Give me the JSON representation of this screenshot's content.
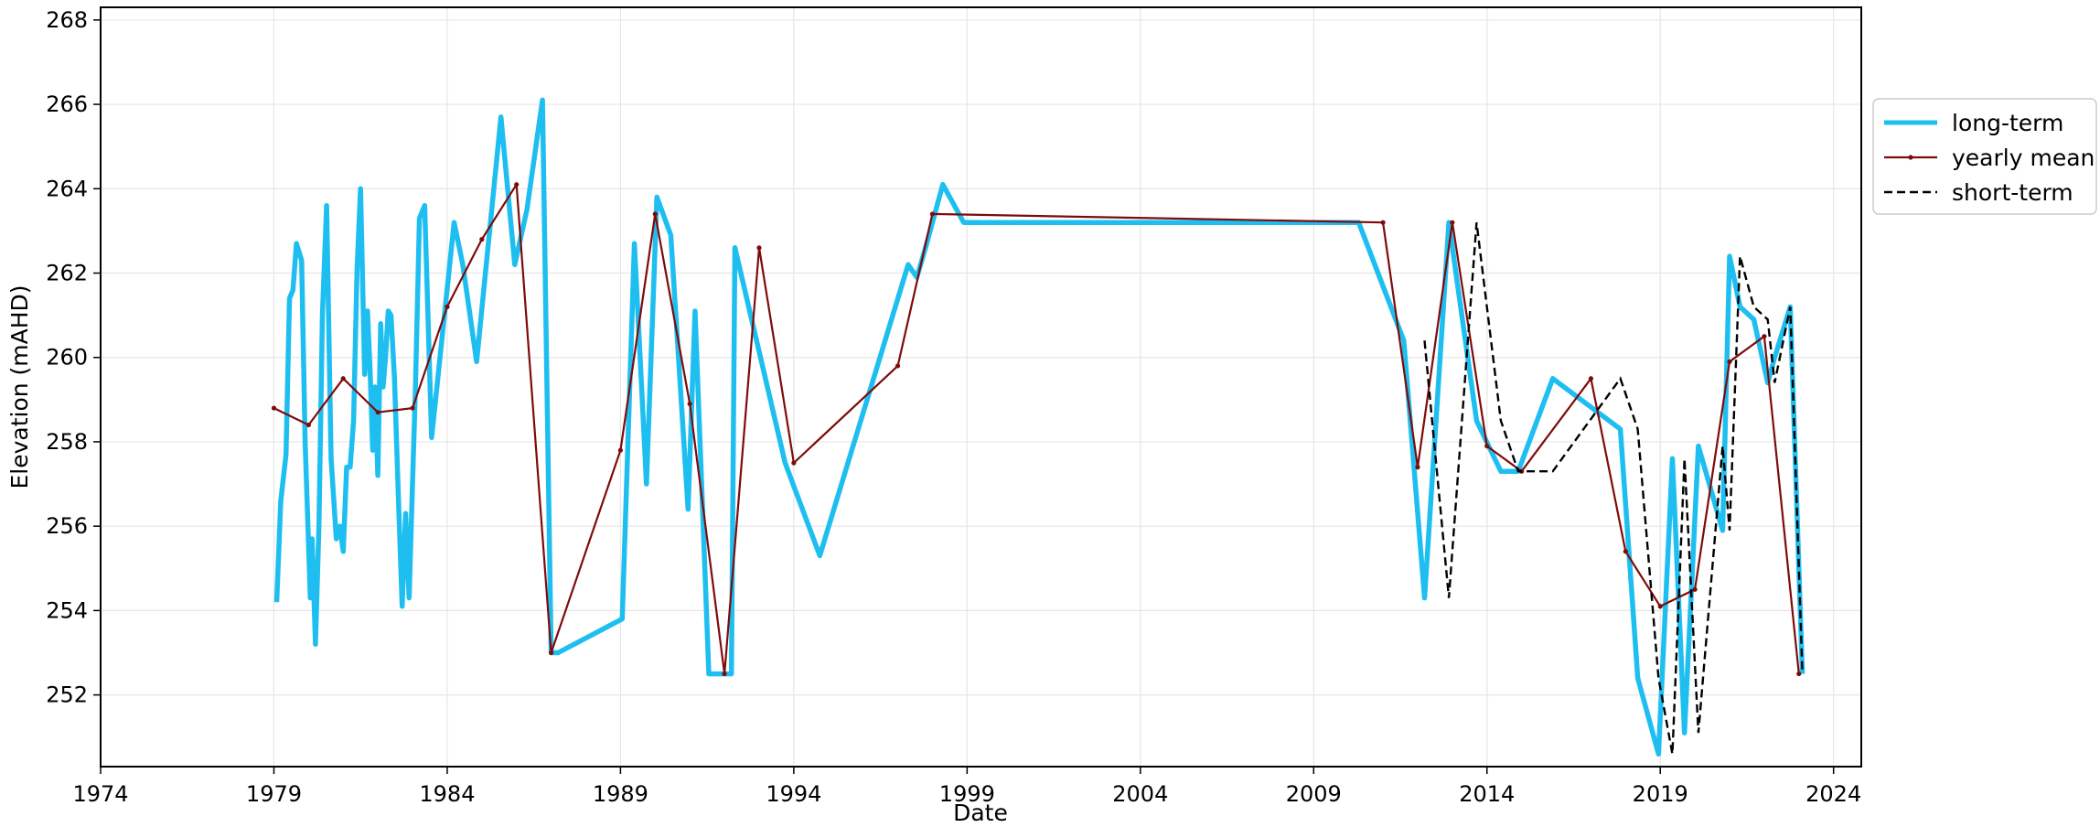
{
  "chart_data": {
    "type": "line",
    "title": "",
    "xlabel": "Date",
    "ylabel": "Elevation (mAHD)",
    "x_ticks": [
      "1974",
      "1979",
      "1984",
      "1989",
      "1994",
      "1999",
      "2004",
      "2009",
      "2014",
      "2019",
      "2024"
    ],
    "y_ticks": [
      "252",
      "254",
      "256",
      "258",
      "260",
      "262",
      "264",
      "266",
      "268"
    ],
    "xlim": [
      1974.0,
      2024.8
    ],
    "ylim": [
      250.3,
      268.3
    ],
    "grid": true,
    "legend_position": "outside-right",
    "series": [
      {
        "name": "long-term",
        "color": "#1ebff0",
        "style": "solid-thick",
        "x": [
          1979.08,
          1979.2,
          1979.35,
          1979.45,
          1979.55,
          1979.65,
          1979.8,
          1979.9,
          1980.05,
          1980.1,
          1980.2,
          1980.3,
          1980.4,
          1980.52,
          1980.65,
          1980.8,
          1980.9,
          1981.0,
          1981.1,
          1981.2,
          1981.3,
          1981.4,
          1981.5,
          1981.62,
          1981.7,
          1981.78,
          1981.85,
          1981.92,
          1982.0,
          1982.08,
          1982.15,
          1982.22,
          1982.3,
          1982.38,
          1982.48,
          1982.58,
          1982.7,
          1982.8,
          1982.9,
          1983.0,
          1983.08,
          1983.2,
          1983.35,
          1983.55,
          1984.2,
          1984.45,
          1984.85,
          1985.55,
          1985.95,
          1986.3,
          1986.75,
          1987.0,
          1987.2,
          1989.05,
          1989.4,
          1989.75,
          1990.05,
          1990.45,
          1990.95,
          1991.15,
          1991.55,
          1992.2,
          1992.3,
          1993.75,
          1994.75,
          1997.3,
          1997.55,
          1997.8,
          1998.3,
          1998.9,
          2010.3,
          2011.6,
          2012.2,
          2012.9,
          2013.7,
          2014.4,
          2014.9,
          2015.9,
          2017.85,
          2018.35,
          2018.95,
          2019.35,
          2019.7,
          2020.1,
          2020.8,
          2021.0,
          2021.3,
          2021.7,
          2022.1,
          2022.3,
          2022.75,
          2023.1
        ],
        "y": [
          254.2,
          256.6,
          257.7,
          261.4,
          261.6,
          262.7,
          262.3,
          258.0,
          254.3,
          255.7,
          253.2,
          256.0,
          261.0,
          263.6,
          257.6,
          255.7,
          256.0,
          255.4,
          257.4,
          257.4,
          258.5,
          262.1,
          264.0,
          259.6,
          261.1,
          259.6,
          257.8,
          259.3,
          257.2,
          260.8,
          259.3,
          260.0,
          261.1,
          261.0,
          259.5,
          257.0,
          254.1,
          256.3,
          254.3,
          257.0,
          259.2,
          263.3,
          263.6,
          258.1,
          263.2,
          262.2,
          259.9,
          265.7,
          262.2,
          263.5,
          266.1,
          253.0,
          253.0,
          253.8,
          262.7,
          257.0,
          263.8,
          262.9,
          256.4,
          261.1,
          252.5,
          252.5,
          262.6,
          257.5,
          255.3,
          262.2,
          261.9,
          262.6,
          264.1,
          263.2,
          263.2,
          260.4,
          254.3,
          263.2,
          258.5,
          257.3,
          257.3,
          259.5,
          258.3,
          252.4,
          250.6,
          257.6,
          251.1,
          257.9,
          255.9,
          262.4,
          261.2,
          260.9,
          259.4,
          260.0,
          261.2,
          252.5
        ]
      },
      {
        "name": "yearly mean",
        "color": "#7e0b0b",
        "style": "solid-thin-markers",
        "x": [
          1979.0,
          1980.0,
          1981.0,
          1982.0,
          1983.0,
          1984.0,
          1985.0,
          1986.0,
          1987.0,
          1989.0,
          1990.0,
          1991.0,
          1992.0,
          1993.0,
          1994.0,
          1997.0,
          1998.0,
          2011.0,
          2012.0,
          2013.0,
          2014.0,
          2015.0,
          2017.0,
          2018.0,
          2019.0,
          2020.0,
          2021.0,
          2022.0,
          2023.0
        ],
        "y": [
          258.8,
          258.4,
          259.5,
          258.7,
          258.8,
          261.2,
          262.8,
          264.1,
          253.0,
          257.8,
          263.4,
          258.9,
          252.5,
          262.6,
          257.5,
          259.8,
          263.4,
          263.2,
          257.4,
          263.2,
          257.9,
          257.3,
          259.5,
          255.4,
          254.1,
          254.5,
          259.9,
          260.5,
          252.5
        ]
      },
      {
        "name": "short-term",
        "color": "#000000",
        "style": "dashed",
        "x": [
          2012.2,
          2012.9,
          2013.7,
          2014.4,
          2014.9,
          2015.9,
          2017.85,
          2018.35,
          2018.95,
          2019.35,
          2019.7,
          2020.1,
          2020.8,
          2021.0,
          2021.3,
          2021.7,
          2022.1,
          2022.3,
          2022.75,
          2023.1
        ],
        "y": [
          260.4,
          254.3,
          263.2,
          258.5,
          257.3,
          257.3,
          259.5,
          258.3,
          252.4,
          250.6,
          257.6,
          251.1,
          257.9,
          255.9,
          262.4,
          261.2,
          260.9,
          259.4,
          261.2,
          252.5
        ]
      }
    ]
  }
}
